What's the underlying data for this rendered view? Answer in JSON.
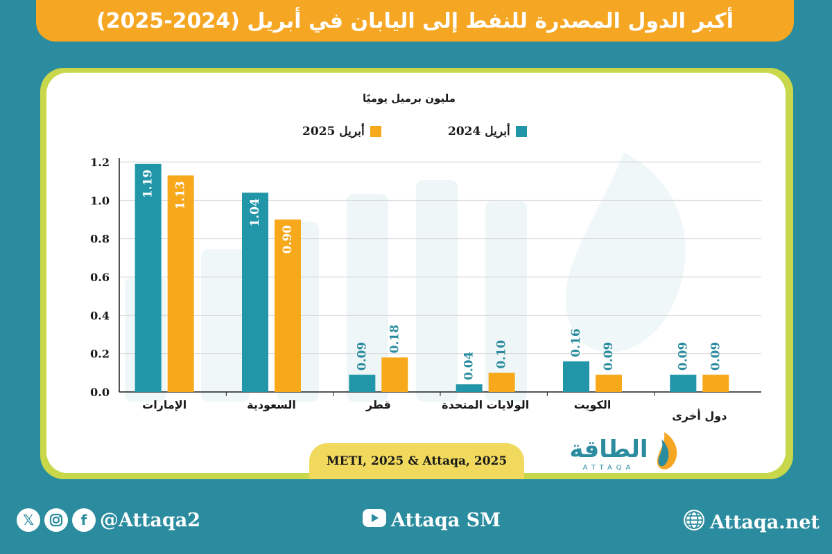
{
  "header": {
    "title": "أكبر الدول المصدرة للنفط إلى اليابان في أبريل (2024-2025)"
  },
  "colors": {
    "background": "#2a8c9e",
    "accent_orange": "#f5a623",
    "series_2024": "#2196a8",
    "series_2025": "#f7a81b",
    "frame_yellow": "#c8d84a",
    "source_pill": "#f0d95c"
  },
  "chart_data": {
    "type": "bar",
    "unit_label": "مليون برميل يوميًا",
    "categories": [
      "الإمارات",
      "السعودية",
      "قطر",
      "الولايات المتحدة",
      "الكويت",
      "دول أخرى"
    ],
    "series": [
      {
        "name": "أبريل 2024",
        "color": "#2196a8",
        "values": [
          1.19,
          1.04,
          0.09,
          0.04,
          0.16,
          0.09
        ],
        "labels": [
          "1.19",
          "1.04",
          "0.09",
          "0.04",
          "0.16",
          "0.09"
        ]
      },
      {
        "name": "أبريل 2025",
        "color": "#f7a81b",
        "values": [
          1.13,
          0.9,
          0.18,
          0.1,
          0.09,
          0.09
        ],
        "labels": [
          "1.13",
          "0.90",
          "0.18",
          "0.10",
          "0.09",
          "0.09"
        ]
      }
    ],
    "yticks": [
      "0.0",
      "0.2",
      "0.4",
      "0.6",
      "0.8",
      "1.0",
      "1.2"
    ],
    "ylim": [
      0,
      1.2
    ],
    "grid": true,
    "legend_position": "top"
  },
  "source": "METI, 2025 & Attaqa, 2025",
  "brand": {
    "logo_text": "الطاقة",
    "logo_subtext": "ATTAQA"
  },
  "footer": {
    "social_handle": "@Attaqa2",
    "social_icons": [
      "x-icon",
      "instagram-icon",
      "facebook-icon"
    ],
    "youtube_label": "Attaqa SM",
    "youtube_icon": "youtube-icon",
    "website": "Attaqa.net",
    "website_icon": "globe-icon"
  }
}
